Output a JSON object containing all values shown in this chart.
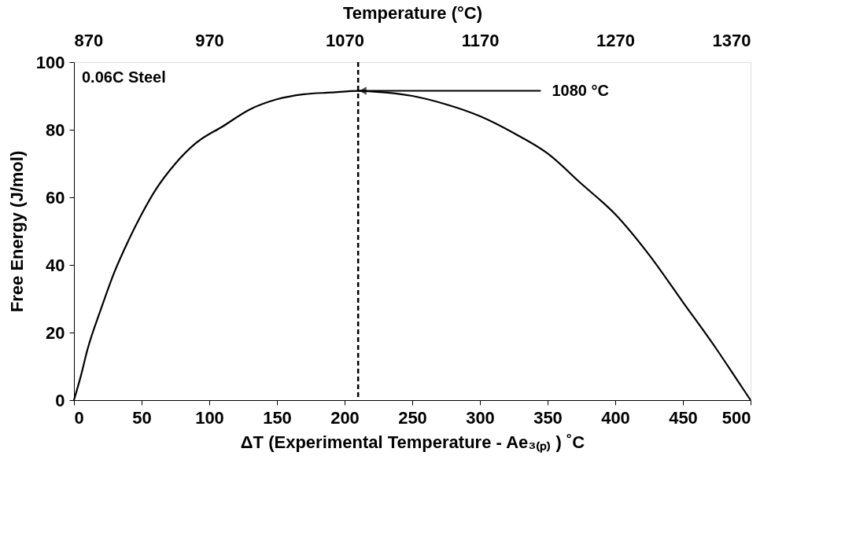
{
  "chart_data": {
    "type": "line",
    "title": null,
    "xlabel": "ΔT (Experimental Temperature - Ae₃₍ₚ₎ ) ˚C",
    "ylabel": "Free Energy (J/mol)",
    "x2label": "Temperature (°C)",
    "x": [
      0,
      5,
      10,
      20,
      30,
      40,
      50,
      60,
      75,
      90,
      110,
      130,
      150,
      170,
      190,
      210,
      230,
      250,
      275,
      300,
      325,
      350,
      375,
      400,
      425,
      450,
      475,
      490,
      500
    ],
    "series": [
      {
        "color": "#000000",
        "values": [
          0,
          7,
          15,
          27,
          38,
          47,
          55,
          62,
          70,
          76,
          81,
          86,
          89,
          90.5,
          91,
          91.5,
          91,
          90,
          87.5,
          84,
          79,
          73,
          64,
          55,
          43,
          29,
          15,
          6,
          0
        ]
      }
    ],
    "xlim": [
      0,
      500
    ],
    "xticks": [
      0,
      50,
      100,
      150,
      200,
      250,
      300,
      350,
      400,
      450,
      500
    ],
    "ylim": [
      0,
      100
    ],
    "yticks": [
      0,
      20,
      40,
      60,
      80,
      100
    ],
    "x2lim": [
      870,
      1370
    ],
    "x2ticks": [
      870,
      970,
      1070,
      1170,
      1270,
      1370
    ],
    "ref_lines": [
      {
        "axis": "x",
        "value": 210,
        "label": null,
        "color": "#000000",
        "line_style": "dashed"
      }
    ],
    "annotations": [
      "0.06C Steel",
      {
        "text": "1080 °C",
        "x": 210,
        "y": 91.5
      }
    ],
    "grid": false,
    "marker": "none",
    "line_style": "solid"
  }
}
